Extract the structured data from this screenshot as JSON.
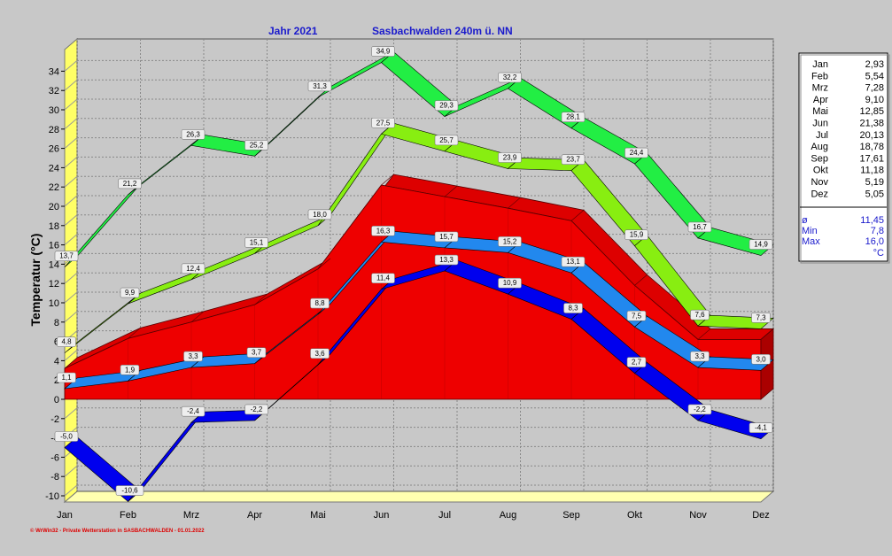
{
  "title": {
    "year": "Jahr  2021",
    "station": "Sasbachwalden  240m ü. NN"
  },
  "footer": "© WrWin32  -  Private Wetterstation in SASBACHWALDEN  -  01.01.2022",
  "chart_data": {
    "type": "area",
    "ylabel": "Temperatur  (°C)",
    "ylim": [
      -10,
      36
    ],
    "yticks": [
      -10,
      -8,
      -6,
      -4,
      -2,
      0,
      2,
      4,
      6,
      8,
      10,
      12,
      14,
      16,
      18,
      20,
      22,
      24,
      26,
      28,
      30,
      32,
      34
    ],
    "categories": [
      "Jan",
      "Feb",
      "Mrz",
      "Apr",
      "Mai",
      "Jun",
      "Jul",
      "Aug",
      "Sep",
      "Okt",
      "Nov",
      "Dez"
    ],
    "xtick_labels": [
      "Jan",
      "Feb",
      "Mrz",
      "Apr",
      "Mai",
      "Jun",
      "Jul",
      "Aug",
      "Sep",
      "Okt",
      "Nov",
      "Dez"
    ],
    "grid": true,
    "series": [
      {
        "key": "area",
        "values": [
          3.2,
          6.3,
          8.0,
          9.8,
          13.5,
          22.2,
          21.0,
          19.8,
          18.5,
          11.8,
          6.2,
          6.2
        ],
        "color": "#ee0000"
      },
      {
        "key": "absmax",
        "values": [
          13.7,
          21.2,
          26.3,
          25.2,
          31.3,
          34.9,
          29.3,
          32.2,
          28.1,
          24.4,
          16.7,
          14.9
        ],
        "labels": [
          "13,7",
          "21,2",
          "26,3",
          "25,2",
          "31,3",
          "34,9",
          "29,3",
          "32,2",
          "28,1",
          "24,4",
          "16,7",
          "14,9"
        ],
        "color": "#22ee44"
      },
      {
        "key": "meanmax",
        "values": [
          4.8,
          9.9,
          12.4,
          15.1,
          18.0,
          27.5,
          25.7,
          23.9,
          23.7,
          15.9,
          7.6,
          7.3
        ],
        "labels": [
          "4,8",
          "9,9",
          "12,4",
          "15,1",
          "18,0",
          "27,5",
          "25,7",
          "23,9",
          "23,7",
          "15,9",
          "7,6",
          "7,3"
        ],
        "color": "#88ee11"
      },
      {
        "key": "mean",
        "values": [
          1.1,
          1.9,
          3.3,
          3.7,
          8.8,
          16.3,
          15.7,
          15.2,
          13.1,
          7.5,
          3.3,
          3.0
        ],
        "labels": [
          "1,1",
          "1,9",
          "3,3",
          "3,7",
          "8,8",
          "16,3",
          "15,7",
          "15,2",
          "13,1",
          "7,5",
          "3,3",
          "3,0"
        ],
        "color": "#2288ee"
      },
      {
        "key": "min",
        "values": [
          -5.0,
          -10.6,
          -2.4,
          -2.2,
          3.6,
          11.4,
          13.3,
          10.9,
          8.3,
          2.7,
          -2.2,
          -4.1
        ],
        "labels": [
          "-5,0",
          "-10,6",
          "-2,4",
          "-2,2",
          "3,6",
          "11,4",
          "13,3",
          "10,9",
          "8,3",
          "2,7",
          "-2,2",
          "-4,1"
        ],
        "color": "#0000ee"
      }
    ]
  },
  "legend": {
    "months": [
      {
        "m": "Jan",
        "v": "2,93"
      },
      {
        "m": "Feb",
        "v": "5,54"
      },
      {
        "m": "Mrz",
        "v": "7,28"
      },
      {
        "m": "Apr",
        "v": "9,10"
      },
      {
        "m": "Mai",
        "v": "12,85"
      },
      {
        "m": "Jun",
        "v": "21,38"
      },
      {
        "m": "Jul",
        "v": "20,13"
      },
      {
        "m": "Aug",
        "v": "18,78"
      },
      {
        "m": "Sep",
        "v": "17,61"
      },
      {
        "m": "Okt",
        "v": "11,18"
      },
      {
        "m": "Nov",
        "v": "5,19"
      },
      {
        "m": "Dez",
        "v": "5,05"
      }
    ],
    "stats": [
      {
        "m": "ø",
        "v": "11,45"
      },
      {
        "m": "Min",
        "v": "7,8"
      },
      {
        "m": "Max",
        "v": "16,0"
      }
    ],
    "unit": "°C"
  }
}
